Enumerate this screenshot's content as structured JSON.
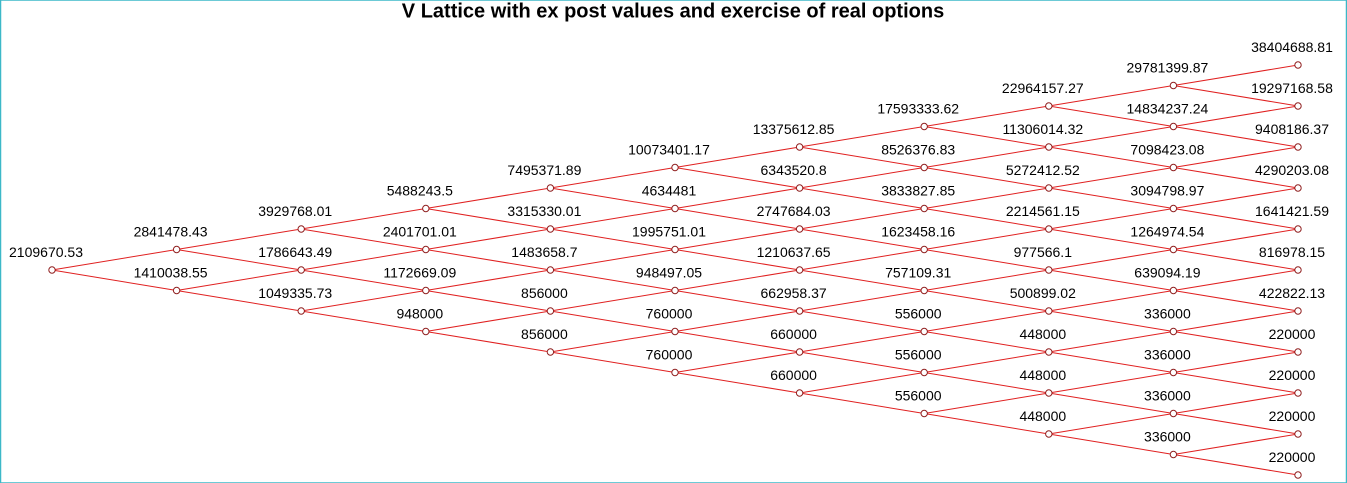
{
  "title": "V Lattice with ex post values and exercise of real options",
  "columns": [
    [
      "2109670.53"
    ],
    [
      "2841478.43",
      "1410038.55"
    ],
    [
      "3929768.01",
      "1786643.49",
      "1049335.73"
    ],
    [
      "5488243.5",
      "2401701.01",
      "1172669.09",
      "948000"
    ],
    [
      "7495371.89",
      "3315330.01",
      "1483658.7",
      "856000",
      "856000"
    ],
    [
      "10073401.17",
      "4634481",
      "1995751.01",
      "948497.05",
      "760000",
      "760000"
    ],
    [
      "13375612.85",
      "6343520.8",
      "2747684.03",
      "1210637.65",
      "662958.37",
      "660000",
      "660000"
    ],
    [
      "17593333.62",
      "8526376.83",
      "3833827.85",
      "1623458.16",
      "757109.31",
      "556000",
      "556000",
      "556000"
    ],
    [
      "22964157.27",
      "11306014.32",
      "5272412.52",
      "2214561.15",
      "977566.1",
      "500899.02",
      "448000",
      "448000",
      "448000"
    ],
    [
      "29781399.87",
      "14834237.24",
      "7098423.08",
      "3094798.97",
      "1264974.54",
      "639094.19",
      "336000",
      "336000",
      "336000",
      "336000"
    ],
    [
      "38404688.81",
      "19297168.58",
      "9408186.37",
      "4290203.08",
      "1641421.59",
      "816978.15",
      "422822.13",
      "220000",
      "220000",
      "220000",
      "220000"
    ]
  ]
}
